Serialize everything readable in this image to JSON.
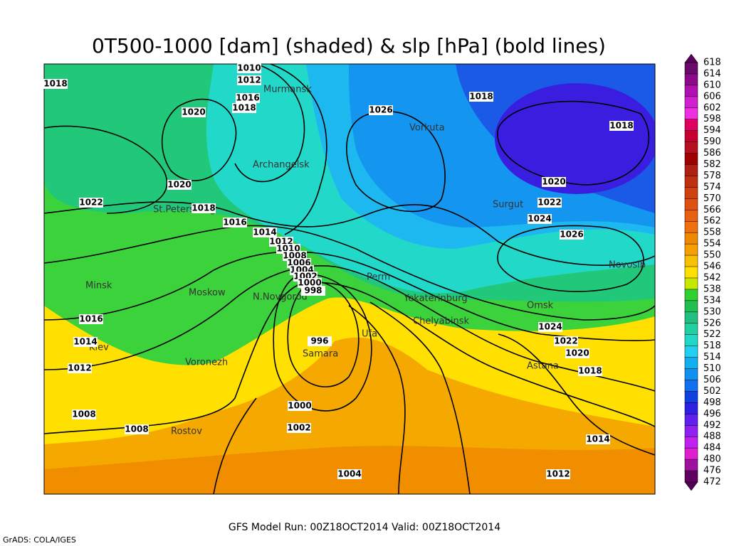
{
  "header": {
    "title": "0T500-1000 [dam] (shaded) & slp [hPa] (bold lines)"
  },
  "footer": {
    "run": "GFS Model Run: 00Z18OCT2014 Valid: 00Z18OCT2014",
    "credit": "GrADS: COLA/IGES"
  },
  "colorbar": {
    "labels": [
      618,
      614,
      610,
      606,
      602,
      598,
      594,
      590,
      586,
      582,
      578,
      574,
      570,
      566,
      562,
      558,
      554,
      550,
      546,
      542,
      538,
      534,
      530,
      526,
      522,
      518,
      514,
      510,
      506,
      502,
      498,
      496,
      492,
      488,
      484,
      480,
      476,
      472
    ]
  },
  "cities": [
    "Murmansk",
    "Archangelsk",
    "Vorkuta",
    "St.Petersburg",
    "Surgut",
    "Novosib",
    "Minsk",
    "Moskow",
    "N.Novgorod",
    "Perm",
    "Yekaterinburg",
    "Chelyabinsk",
    "Omsk",
    "Kiev",
    "Voronezh",
    "Samara",
    "Ufa",
    "Astana",
    "Rostov"
  ],
  "isobar_labels": [
    1018,
    1010,
    1012,
    1016,
    1018,
    1020,
    1026,
    1018,
    1018,
    1020,
    1022,
    1018,
    1016,
    1014,
    1012,
    1010,
    1008,
    1006,
    1004,
    1002,
    1000,
    998,
    996,
    1020,
    1022,
    1024,
    1026,
    1024,
    1022,
    1020,
    1018,
    1016,
    1014,
    1012,
    1008,
    1008,
    1000,
    1002,
    1004,
    1012,
    1014
  ]
}
